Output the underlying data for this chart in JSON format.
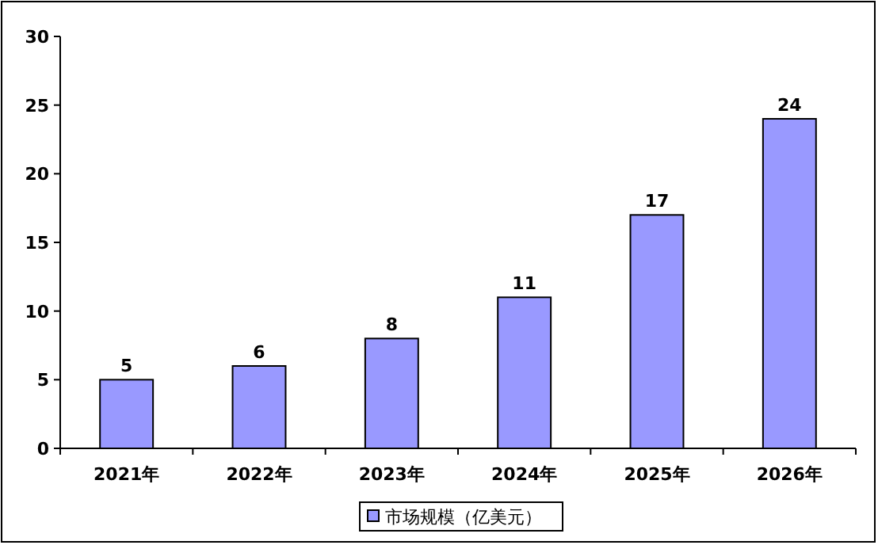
{
  "chart_data": {
    "type": "bar",
    "categories": [
      "2021年",
      "2022年",
      "2023年",
      "2024年",
      "2025年",
      "2026年"
    ],
    "series": [
      {
        "name": "市场规模（亿美元）",
        "color": "#9999ff",
        "values": [
          5,
          6,
          8,
          11,
          17,
          24
        ]
      }
    ],
    "ylim": [
      0,
      30
    ],
    "yticks": [
      0,
      5,
      10,
      15,
      20,
      25,
      30
    ],
    "data_labels": true,
    "legend": "bottom",
    "grid": false
  }
}
